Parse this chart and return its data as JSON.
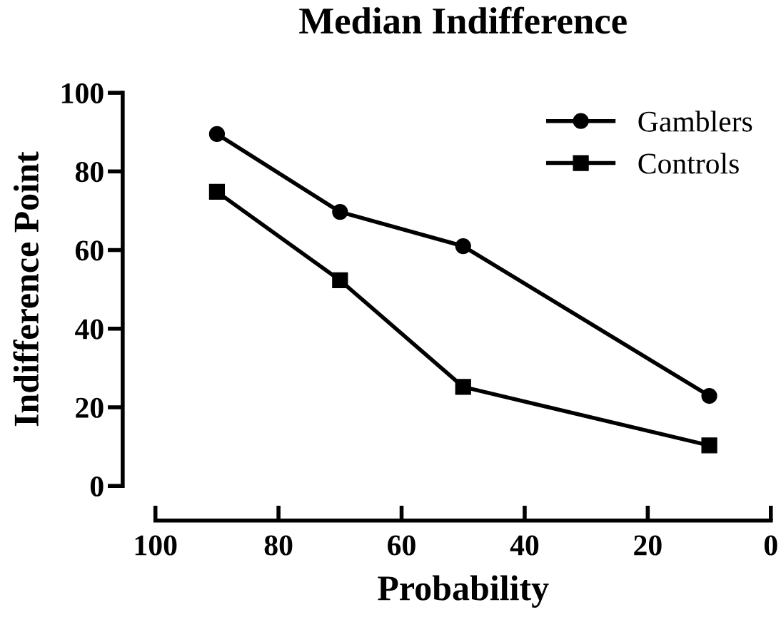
{
  "chart_data": {
    "type": "line",
    "title": "Median Indifference",
    "xlabel": "Probability",
    "ylabel": "Indifference Point",
    "x": [
      90,
      70,
      50,
      10
    ],
    "series": [
      {
        "name": "Gamblers",
        "color": "#000000",
        "marker": "circle",
        "values": [
          89.5,
          69.7,
          61,
          22.9
        ]
      },
      {
        "name": "Controls",
        "color": "#000000",
        "marker": "square",
        "values": [
          74.8,
          52.3,
          25.2,
          10.3
        ]
      }
    ],
    "xlim": [
      100,
      0
    ],
    "xticks": [
      100,
      80,
      60,
      40,
      20,
      0
    ],
    "ylim": [
      0,
      100
    ],
    "yticks": [
      0,
      20,
      40,
      60,
      80,
      100
    ],
    "grid": false,
    "legend": "top right",
    "line_style": "solid"
  }
}
